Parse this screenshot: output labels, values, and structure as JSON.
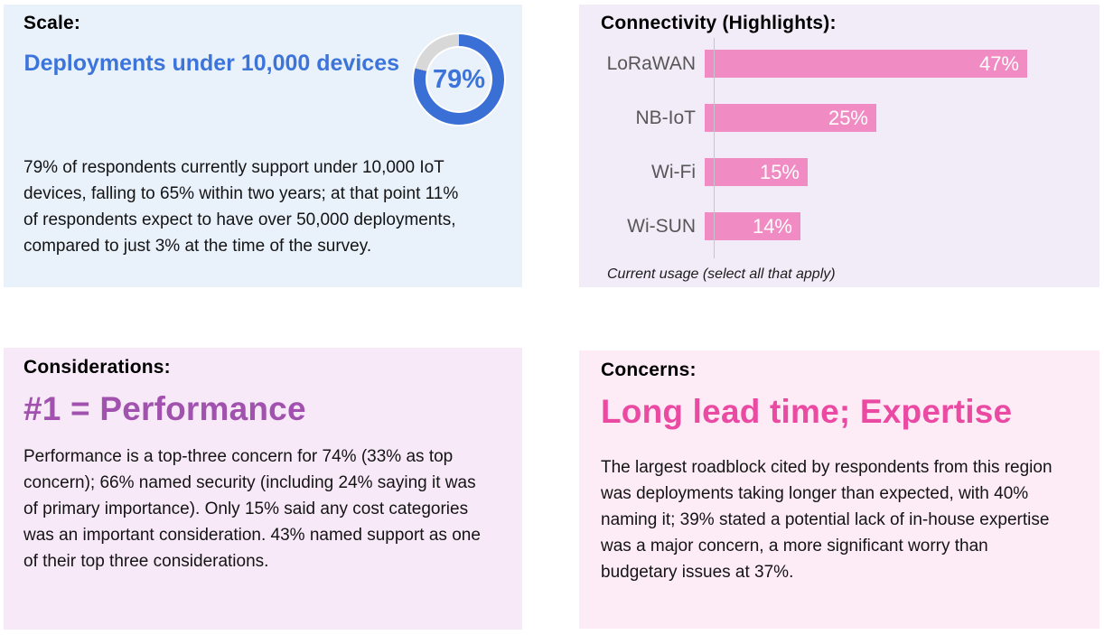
{
  "panels": {
    "scale": {
      "heading": "Scale:",
      "subheading": "Deployments under 10,000 devices",
      "body": "79% of respondents currently support under 10,000 IoT devices, falling to 65% within two years; at that point 11% of respondents expect to have over 50,000 deployments, compared to just 3% at the time of the survey."
    },
    "connectivity": {
      "heading": "Connectivity (Highlights):"
    },
    "considerations": {
      "heading": "Considerations:",
      "headline": "#1 = Performance",
      "body": "Performance is a top-three concern for 74% (33% as top concern); 66% named security (including 24% saying it was of primary importance). Only 15% said any cost categories was an important consideration. 43% named support as one of their top three considerations."
    },
    "concerns": {
      "heading": "Concerns:",
      "headline": "Long lead time; Expertise",
      "body": "The largest roadblock cited by respondents from this region was deployments taking longer than expected, with 40% naming it; 39% stated a potential lack of in-house expertise was a major concern, a more significant worry than budgetary issues at 37%."
    }
  },
  "colors": {
    "panel_scale_bg": "#e9f1fb",
    "panel_connectivity_bg": "#f1ecf8",
    "panel_considerations_bg": "#f8e9f8",
    "panel_concerns_bg": "#fdecf5",
    "blue_accent": "#3c74da",
    "purple_accent": "#a151ae",
    "pink_accent": "#eb4aa3",
    "bar_pink": "#f08cc3",
    "donut_track_gray": "#d8d8d8"
  },
  "chart_data": [
    {
      "type": "pie",
      "subtype": "donut",
      "title": "Scale: Deployments under 10,000 devices",
      "center_label": "79%",
      "slices": [
        {
          "label": "Deployments under 10,000 devices",
          "value": 79,
          "color": "#3a6fd6"
        },
        {
          "label": "Remainder",
          "value": 21,
          "color": "#d8d8d8"
        }
      ]
    },
    {
      "type": "bar",
      "orientation": "horizontal",
      "title": "Connectivity (Highlights):",
      "categories": [
        "LoRaWAN",
        "NB-IoT",
        "Wi-Fi",
        "Wi-SUN"
      ],
      "values": [
        47,
        25,
        15,
        14
      ],
      "value_labels": [
        "47%",
        "25%",
        "15%",
        "14%"
      ],
      "caption": "Current usage (select all that apply)",
      "bar_color": "#f08cc3",
      "value_label_color": "#ffffff",
      "xlim": [
        0,
        56
      ],
      "grid": false,
      "legend": false
    }
  ]
}
